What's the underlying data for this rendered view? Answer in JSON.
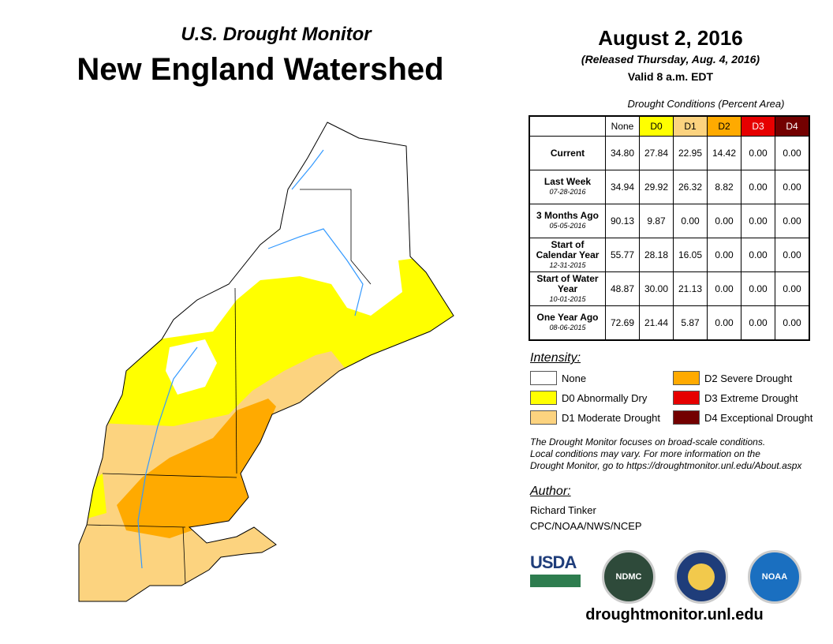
{
  "header": {
    "subtitle": "U.S. Drought Monitor",
    "title": "New England Watershed",
    "date": "August 2, 2016",
    "released": "(Released Thursday, Aug. 4, 2016)",
    "valid": "Valid 8 a.m. EDT"
  },
  "table": {
    "caption": "Drought Conditions (Percent Area)",
    "columns": [
      {
        "label": "None",
        "color": "#ffffff"
      },
      {
        "label": "D0",
        "color": "#ffff00"
      },
      {
        "label": "D1",
        "color": "#fcd37f"
      },
      {
        "label": "D2",
        "color": "#ffaa00"
      },
      {
        "label": "D3",
        "color": "#e60000"
      },
      {
        "label": "D4",
        "color": "#730000"
      }
    ],
    "rows": [
      {
        "label": "Current",
        "date": "",
        "values": [
          "34.80",
          "27.84",
          "22.95",
          "14.42",
          "0.00",
          "0.00"
        ]
      },
      {
        "label": "Last Week",
        "date": "07-28-2016",
        "values": [
          "34.94",
          "29.92",
          "26.32",
          "8.82",
          "0.00",
          "0.00"
        ]
      },
      {
        "label": "3 Months Ago",
        "date": "05-05-2016",
        "values": [
          "90.13",
          "9.87",
          "0.00",
          "0.00",
          "0.00",
          "0.00"
        ]
      },
      {
        "label": "Start of Calendar Year",
        "date": "12-31-2015",
        "values": [
          "55.77",
          "28.18",
          "16.05",
          "0.00",
          "0.00",
          "0.00"
        ]
      },
      {
        "label": "Start of Water Year",
        "date": "10-01-2015",
        "values": [
          "48.87",
          "30.00",
          "21.13",
          "0.00",
          "0.00",
          "0.00"
        ]
      },
      {
        "label": "One Year Ago",
        "date": "08-06-2015",
        "values": [
          "72.69",
          "21.44",
          "5.87",
          "0.00",
          "0.00",
          "0.00"
        ]
      }
    ]
  },
  "legend": {
    "title": "Intensity:",
    "items": [
      {
        "label": "None",
        "color": "#ffffff"
      },
      {
        "label": "D0 Abnormally Dry",
        "color": "#ffff00"
      },
      {
        "label": "D1 Moderate Drought",
        "color": "#fcd37f"
      },
      {
        "label": "D2 Severe Drought",
        "color": "#ffaa00"
      },
      {
        "label": "D3 Extreme Drought",
        "color": "#e60000"
      },
      {
        "label": "D4 Exceptional Drought",
        "color": "#730000"
      }
    ]
  },
  "note": [
    "The Drought Monitor focuses on broad-scale conditions.",
    "Local conditions may vary. For more information on the",
    "Drought Monitor, go to https://droughtmonitor.unl.edu/About.aspx"
  ],
  "author": {
    "heading": "Author:",
    "name": "Richard Tinker",
    "org": "CPC/NOAA/NWS/NCEP"
  },
  "logos": {
    "usda": "USDA",
    "ndmc": "NDMC",
    "noaa": "NOAA"
  },
  "footer": {
    "url": "droughtmonitor.unl.edu"
  }
}
